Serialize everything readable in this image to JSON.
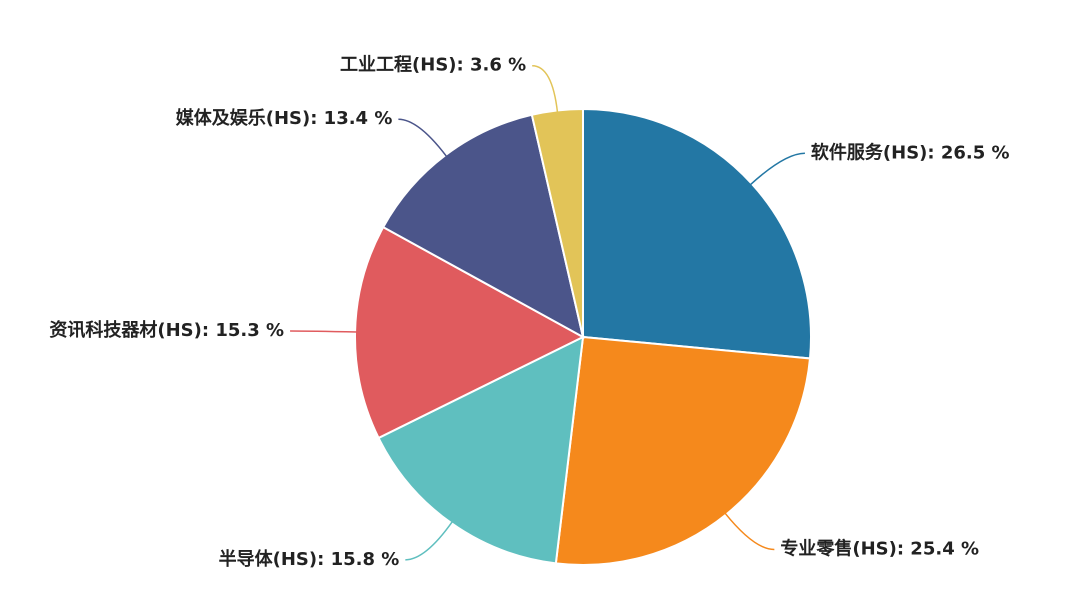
{
  "chart_data": {
    "type": "pie",
    "values": [
      26.5,
      25.4,
      15.8,
      15.3,
      13.4,
      3.6
    ],
    "value_labels": [
      "软件服务(HS): 26.5 %",
      "专业零售(HS): 25.4 %",
      "半导体(HS): 15.8 %",
      "资讯科技器材(HS): 15.3 %",
      "媒体及娱乐(HS): 13.4 %",
      "工业工程(HS): 3.6 %"
    ],
    "colors": [
      "#2377a4",
      "#f5891c",
      "#5fbfbf",
      "#e05b5e",
      "#4b558a",
      "#e2c458"
    ]
  }
}
